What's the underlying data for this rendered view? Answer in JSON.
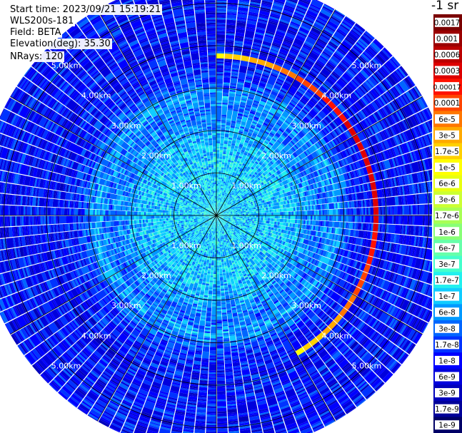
{
  "info": {
    "start_time": "Start time: 2023/09/21 15:19:21",
    "instrument": "WLS200s-181",
    "field": "Field: BETA",
    "elevation": "Elevation(deg): 35.30",
    "nrays": "NRays: 120"
  },
  "colorbar": {
    "unit": "-1 sr",
    "ticks": [
      "0.0017",
      "0.001",
      "0.0006",
      "0.0003",
      "0.00017",
      "0.0001",
      "6e-5",
      "3e-5",
      "1.7e-5",
      "1e-5",
      "6e-6",
      "3e-6",
      "1.7e-6",
      "1e-6",
      "6e-7",
      "3e-7",
      "1.7e-7",
      "1e-7",
      "6e-8",
      "3e-8",
      "1.7e-8",
      "1e-8",
      "6e-9",
      "3e-9",
      "1.7e-9",
      "1e-9"
    ],
    "colors": [
      "#7a0000",
      "#9a0000",
      "#bb0000",
      "#dd0000",
      "#ff1100",
      "#ff4400",
      "#ff7700",
      "#ffaa00",
      "#ffd000",
      "#ffff00",
      "#e8ff10",
      "#ccff33",
      "#a8ff55",
      "#88ff77",
      "#66ffaa",
      "#44ffcc",
      "#22f0ee",
      "#10ccff",
      "#0099ff",
      "#0066ff",
      "#0033ff",
      "#0000ff",
      "#0000dd",
      "#0000bb",
      "#000099",
      "#000066"
    ]
  },
  "chart_data": {
    "type": "heatmap",
    "projection": "polar-ppi",
    "rays": 120,
    "range_rings_km": [
      1,
      2,
      3,
      4,
      5
    ],
    "range_labels": [
      "1.00km",
      "2.00km",
      "3.00km",
      "4.00km",
      "5.00km"
    ],
    "max_range_km": 5.6,
    "radial_lines_deg": [
      0,
      30,
      60,
      90,
      120,
      150,
      180,
      210,
      240,
      270,
      300,
      330
    ],
    "profile": {
      "range_km": [
        0.0,
        0.5,
        1.0,
        1.5,
        2.0,
        2.5,
        2.8,
        3.2,
        3.6,
        4.0,
        4.5,
        5.0,
        5.6
      ],
      "beta_sr-1": [
        1.7e-07,
        1e-07,
        1e-07,
        1e-07,
        6e-08,
        3e-08,
        6e-08,
        1.7e-08,
        1e-08,
        1e-08,
        1e-08,
        1e-08,
        1e-08
      ]
    },
    "enhanced_arc": {
      "range_km": 3.75,
      "azimuth_deg": [
        0,
        150
      ],
      "beta_sr-1": [
        1e-05,
        0.0003
      ]
    }
  }
}
